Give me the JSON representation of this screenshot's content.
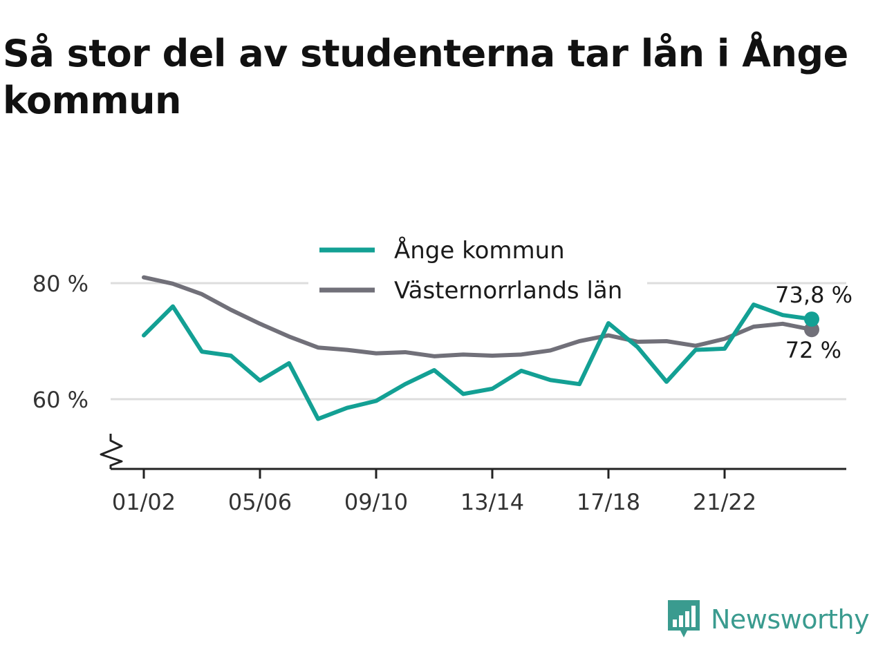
{
  "title": "Så stor del av studenterna tar lån i Ånge kommun",
  "brand": "Newsworthy",
  "colors": {
    "ange": "#13a094",
    "lan": "#717079",
    "grid": "#dddddd",
    "axis": "#222222",
    "brand": "#3a9b8f"
  },
  "chart_data": {
    "type": "line",
    "x": [
      "01/02",
      "02/03",
      "03/04",
      "04/05",
      "05/06",
      "06/07",
      "07/08",
      "08/09",
      "09/10",
      "10/11",
      "11/12",
      "12/13",
      "13/14",
      "14/15",
      "15/16",
      "16/17",
      "17/18",
      "18/19",
      "19/20",
      "20/21",
      "21/22",
      "22/23",
      "23/24",
      "24/25"
    ],
    "x_tick_labels": [
      "01/02",
      "05/06",
      "09/10",
      "13/14",
      "17/18",
      "21/22"
    ],
    "y_tick_labels": [
      "80 %",
      "60 %"
    ],
    "y_ticks": [
      80,
      60
    ],
    "ylim": [
      48,
      90
    ],
    "series": [
      {
        "name": "Ånge kommun",
        "color": "#13a094",
        "end_label": "73,8 %",
        "values": [
          71.0,
          76.0,
          68.2,
          67.5,
          63.2,
          66.2,
          56.6,
          58.5,
          59.7,
          62.6,
          65.0,
          60.9,
          61.8,
          64.9,
          63.3,
          62.6,
          73.1,
          69.0,
          63.0,
          68.5,
          68.7,
          76.3,
          74.5,
          73.8
        ]
      },
      {
        "name": "Västernorrlands län",
        "color": "#717079",
        "end_label": "72 %",
        "values": [
          81.0,
          79.9,
          78.1,
          75.4,
          73.0,
          70.8,
          68.9,
          68.5,
          67.9,
          68.1,
          67.4,
          67.7,
          67.5,
          67.7,
          68.4,
          70.0,
          71.0,
          69.9,
          70.0,
          69.2,
          70.4,
          72.5,
          73.0,
          72.0
        ]
      }
    ],
    "legend": "top-center",
    "grid": true
  }
}
